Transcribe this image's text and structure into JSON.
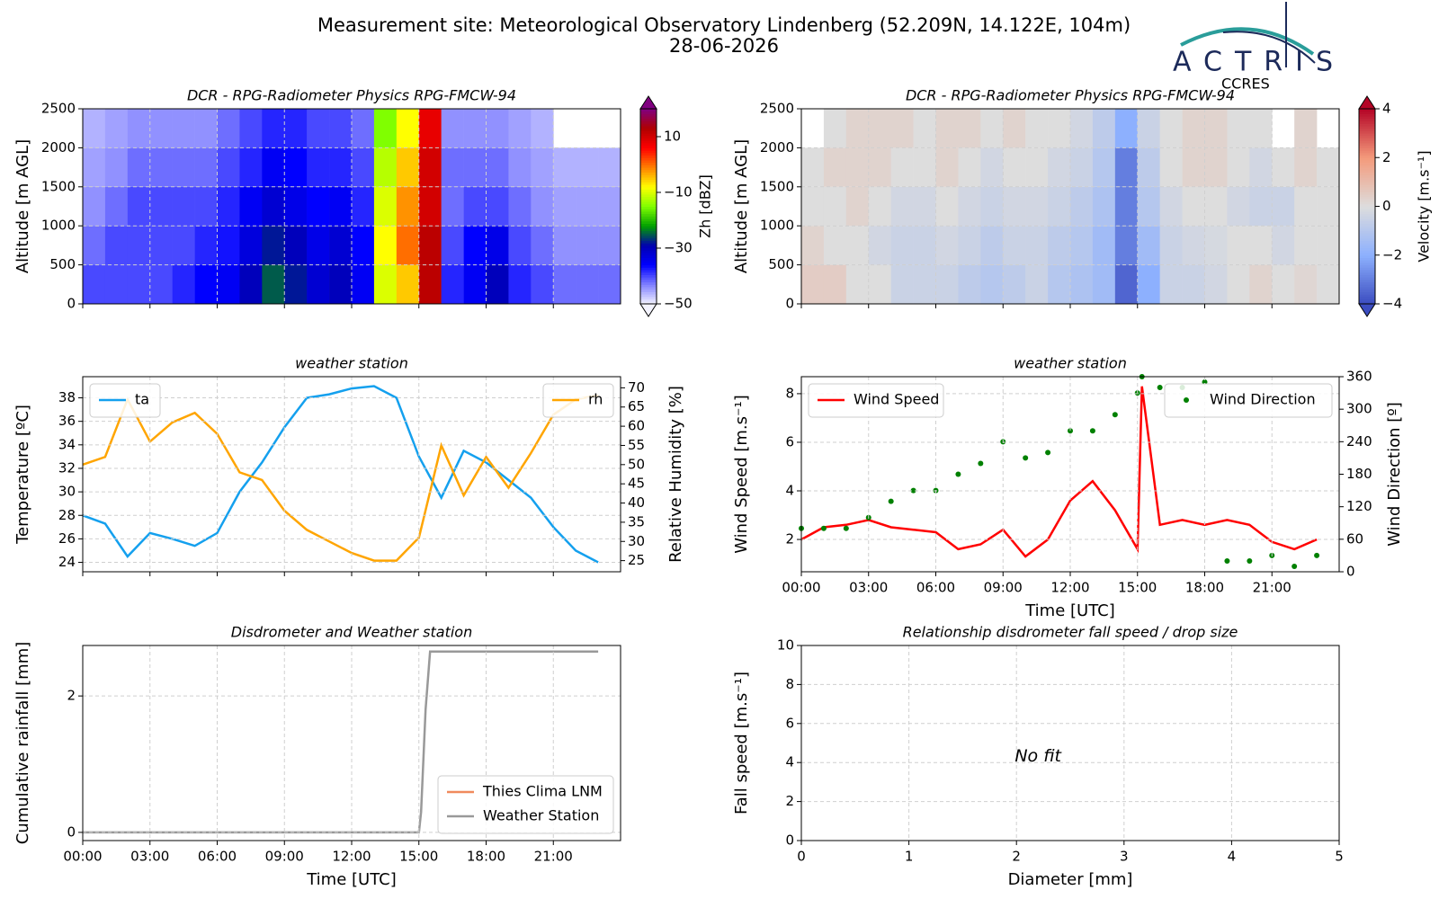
{
  "header": {
    "title": "Measurement site: Meteorological Observatory Lindenberg (52.209N, 14.122E, 104m)",
    "date": "28-06-2026",
    "logo": "ACTRIS",
    "logo_sub": "CCRES"
  },
  "chart_data": [
    {
      "type": "heatmap",
      "title": "DCR - RPG-Radiometer Physics RPG-FMCW-94",
      "ylabel": "Altitude [m AGL]",
      "zlabel": "Zh [dBZ]",
      "xlim": [
        0,
        24
      ],
      "xticks": [
        0,
        3,
        6,
        9,
        12,
        15,
        18,
        21
      ],
      "xticklabels": false,
      "ylim": [
        0,
        2500
      ],
      "yticks": [
        0,
        500,
        1000,
        1500,
        2000,
        2500
      ],
      "grid": true,
      "x_edges": [
        0,
        1,
        2,
        3,
        4,
        5,
        6,
        7,
        8,
        9,
        10,
        11,
        12,
        13,
        14,
        15,
        16,
        17,
        18,
        19,
        20,
        21,
        22,
        23,
        24
      ],
      "y_edges": [
        0,
        500,
        1000,
        1500,
        2000,
        2500
      ],
      "z": [
        [
          -40,
          -40,
          -40,
          -40,
          -38,
          -36,
          -35,
          -30,
          -25,
          -28,
          -32,
          -30,
          -35,
          -10,
          -5,
          12,
          -38,
          -35,
          -30,
          -38,
          -40,
          -42,
          -42,
          -42
        ],
        [
          -42,
          -40,
          -40,
          -40,
          -40,
          -38,
          -37,
          -33,
          -28,
          -30,
          -34,
          -32,
          -36,
          -8,
          0,
          12,
          -40,
          -36,
          -34,
          -40,
          -42,
          -44,
          -44,
          -44
        ],
        [
          -44,
          -42,
          -40,
          -40,
          -40,
          -40,
          -38,
          -35,
          -32,
          -34,
          -36,
          -35,
          -38,
          -10,
          -2,
          10,
          -42,
          -40,
          -40,
          -42,
          -44,
          -45,
          -45,
          -45
        ],
        [
          -45,
          -44,
          -42,
          -42,
          -42,
          -42,
          -40,
          -38,
          -35,
          -36,
          -38,
          -38,
          -40,
          -12,
          -5,
          10,
          -42,
          -42,
          -42,
          -44,
          -45,
          -46,
          -46,
          -46
        ],
        [
          -46,
          -45,
          -44,
          -44,
          -44,
          -44,
          -42,
          -40,
          -38,
          -38,
          -40,
          -40,
          -42,
          -15,
          -8,
          8,
          -44,
          -44,
          -44,
          -45,
          -46,
          null,
          null,
          null
        ]
      ],
      "zlim": [
        -50,
        20
      ],
      "zticks": [
        {
          "value": -50,
          "label": "−50"
        },
        {
          "value": -30,
          "label": "−30"
        },
        {
          "value": -10,
          "label": "−10"
        },
        10
      ],
      "colormap": [
        "#f4f4ff",
        "#8080ff",
        "#0000ff",
        "#0000b0",
        "#00a000",
        "#80ff00",
        "#ffff00",
        "#ff8000",
        "#ff0000",
        "#b00000",
        "#800080"
      ]
    },
    {
      "type": "heatmap",
      "title": "DCR - RPG-Radiometer Physics RPG-FMCW-94",
      "ylabel": "Altitude [m AGL]",
      "zlabel": "Velocity [m.s⁻¹]",
      "xlim": [
        0,
        24
      ],
      "xticks": [
        0,
        3,
        6,
        9,
        12,
        15,
        18,
        21
      ],
      "xticklabels": false,
      "ylim": [
        0,
        2500
      ],
      "yticks": [
        0,
        500,
        1000,
        1500,
        2000,
        2500
      ],
      "grid": true,
      "x_edges": [
        0,
        1,
        2,
        3,
        4,
        5,
        6,
        7,
        8,
        9,
        10,
        11,
        12,
        13,
        14,
        15,
        16,
        17,
        18,
        19,
        20,
        21,
        22,
        23,
        24
      ],
      "y_edges": [
        0,
        500,
        1000,
        1500,
        2000,
        2500
      ],
      "z": [
        [
          0.5,
          0.5,
          0,
          0,
          -0.5,
          -0.5,
          -0.5,
          -0.8,
          -1,
          -0.8,
          -0.5,
          -1,
          -1.2,
          -1.5,
          -3.5,
          -2,
          -0.5,
          -0.5,
          -0.3,
          0,
          0.3,
          0,
          0.2,
          0
        ],
        [
          0.3,
          0,
          0,
          -0.3,
          -0.5,
          -0.5,
          -0.3,
          -0.5,
          -0.8,
          -0.5,
          -0.5,
          -0.8,
          -1,
          -1.5,
          -3,
          -1.5,
          -0.5,
          -0.3,
          -0.2,
          0,
          0,
          -0.3,
          0,
          0
        ],
        [
          0,
          0,
          0.3,
          0,
          -0.3,
          -0.3,
          0,
          -0.3,
          -0.5,
          -0.3,
          -0.3,
          -0.5,
          -0.8,
          -1.2,
          -3,
          -1,
          -0.3,
          0,
          0,
          -0.3,
          -0.5,
          -0.5,
          0,
          0
        ],
        [
          0,
          0.3,
          0.3,
          0.3,
          0,
          0,
          0.3,
          0,
          -0.3,
          0,
          0,
          -0.3,
          -0.5,
          -1,
          -3,
          -0.8,
          0,
          0.3,
          0.3,
          0,
          -0.3,
          0,
          0.3,
          0
        ],
        [
          null,
          0,
          0.3,
          0.3,
          0.3,
          0,
          0.3,
          0.3,
          0,
          0.3,
          0,
          0,
          -0.3,
          -0.8,
          -2,
          -0.5,
          0,
          0.3,
          0.3,
          0,
          0,
          null,
          0.3,
          null
        ]
      ],
      "zlim": [
        -4,
        4
      ],
      "zticks": [
        {
          "value": -4,
          "label": "−4"
        },
        {
          "value": -2,
          "label": "−2"
        },
        0,
        2,
        4
      ],
      "colormap": [
        "#3b4cc0",
        "#8db0fe",
        "#dddddd",
        "#f49a7b",
        "#b40426"
      ]
    },
    {
      "type": "line",
      "title": "weather station",
      "ylabel": "Temperature [ºC]",
      "y2label": "Relative Humidity [%]",
      "xlim": [
        0,
        24
      ],
      "xticks": [
        0,
        3,
        6,
        9,
        12,
        15,
        18,
        21
      ],
      "xticklabels": false,
      "ylim": [
        23.2,
        39.8
      ],
      "yticks": [
        24,
        26,
        28,
        30,
        32,
        34,
        36,
        38
      ],
      "y2lim": [
        22.1,
        72.9
      ],
      "y2ticks": [
        25,
        30,
        35,
        40,
        45,
        50,
        55,
        60,
        65,
        70
      ],
      "grid": true,
      "x": [
        0,
        1,
        2,
        3,
        4,
        5,
        6,
        7,
        8,
        9,
        10,
        11,
        12,
        13,
        14,
        15,
        16,
        17,
        18,
        19,
        20,
        21,
        22,
        23
      ],
      "series": [
        {
          "name": "ta",
          "color": "#14a0ee",
          "legend": "upper left",
          "values": [
            28,
            27.3,
            24.5,
            26.5,
            26,
            25.4,
            26.5,
            30,
            32.5,
            35.5,
            38,
            38.3,
            38.8,
            39,
            38,
            33,
            29.5,
            33.5,
            32.5,
            31,
            29.5,
            27,
            25,
            24
          ]
        },
        {
          "name": "rh",
          "color": "#ffa500",
          "legend": "upper right",
          "axis": "y2",
          "values": [
            50,
            52,
            67,
            56,
            61,
            63.5,
            58,
            48,
            46,
            38,
            33,
            30,
            27,
            25,
            25,
            31,
            55,
            42,
            52,
            44,
            53,
            63,
            67,
            68
          ]
        }
      ]
    },
    {
      "type": "line",
      "title": "weather station",
      "xlabel": "Time [UTC]",
      "ylabel": "Wind Speed [m.s⁻¹]",
      "y2label": "Wind Direction [º]",
      "xlim": [
        0,
        24
      ],
      "xticks": [
        {
          "value": 0,
          "label": "00:00"
        },
        {
          "value": 3,
          "label": "03:00"
        },
        {
          "value": 6,
          "label": "06:00"
        },
        {
          "value": 9,
          "label": "09:00"
        },
        {
          "value": 12,
          "label": "12:00"
        },
        {
          "value": 15,
          "label": "15:00"
        },
        {
          "value": 18,
          "label": "18:00"
        },
        {
          "value": 21,
          "label": "21:00"
        }
      ],
      "ylim": [
        0.67,
        8.7
      ],
      "yticks": [
        2,
        4,
        6,
        8
      ],
      "y2lim": [
        0,
        360
      ],
      "y2ticks": [
        0,
        60,
        120,
        180,
        240,
        300,
        360
      ],
      "grid": true,
      "x": [
        0,
        1,
        2,
        3,
        4,
        5,
        6,
        7,
        8,
        9,
        10,
        11,
        12,
        13,
        14,
        15,
        15.2,
        16,
        17,
        18,
        19,
        20,
        21,
        22,
        23
      ],
      "series": [
        {
          "name": "Wind Speed",
          "color": "#ff0000",
          "legend": "upper left",
          "values": [
            2,
            2.5,
            2.6,
            2.8,
            2.5,
            2.4,
            2.3,
            1.6,
            1.8,
            2.4,
            1.3,
            2,
            3.6,
            4.4,
            3.2,
            1.6,
            8.3,
            2.6,
            2.8,
            2.6,
            2.8,
            2.6,
            1.9,
            1.6,
            2
          ]
        },
        {
          "name": "Wind Direction",
          "color": "#008000",
          "legend": "upper right",
          "axis": "y2",
          "type": "scatter",
          "values": [
            80,
            80,
            80,
            100,
            130,
            150,
            150,
            180,
            200,
            240,
            210,
            220,
            260,
            260,
            290,
            330,
            360,
            340,
            340,
            350,
            20,
            20,
            30,
            10,
            30
          ]
        }
      ]
    },
    {
      "type": "line",
      "title": "Disdrometer and Weather station",
      "xlabel": "Time [UTC]",
      "ylabel": "Cumulative rainfall [mm]",
      "xlim": [
        0,
        24
      ],
      "xticks": [
        {
          "value": 0,
          "label": "00:00"
        },
        {
          "value": 3,
          "label": "03:00"
        },
        {
          "value": 6,
          "label": "06:00"
        },
        {
          "value": 9,
          "label": "09:00"
        },
        {
          "value": 12,
          "label": "12:00"
        },
        {
          "value": 15,
          "label": "15:00"
        },
        {
          "value": 18,
          "label": "18:00"
        },
        {
          "value": 21,
          "label": "21:00"
        }
      ],
      "ylim": [
        -0.12,
        2.74
      ],
      "yticks": [
        0,
        2
      ],
      "grid": true,
      "series": [
        {
          "name": "Thies Clima LNM",
          "color": "#f08a5d",
          "legend": "lower right",
          "x": [],
          "values": []
        },
        {
          "name": "Weather Station",
          "color": "#999999",
          "legend": "lower right",
          "x": [
            0,
            15,
            15.1,
            15.3,
            15.5,
            23
          ],
          "values": [
            0,
            0,
            0.3,
            1.8,
            2.65,
            2.65
          ]
        }
      ]
    },
    {
      "type": "scatter",
      "title": "Relationship disdrometer fall speed / drop size",
      "xlabel": "Diameter [mm]",
      "ylabel": "Fall speed [m.s⁻¹]",
      "annotation": "No fit",
      "xlim": [
        0,
        5
      ],
      "xticks": [
        0,
        1,
        2,
        3,
        4,
        5
      ],
      "ylim": [
        0,
        10
      ],
      "yticks": [
        0,
        2,
        4,
        6,
        8,
        10
      ],
      "grid": true,
      "series": []
    }
  ]
}
